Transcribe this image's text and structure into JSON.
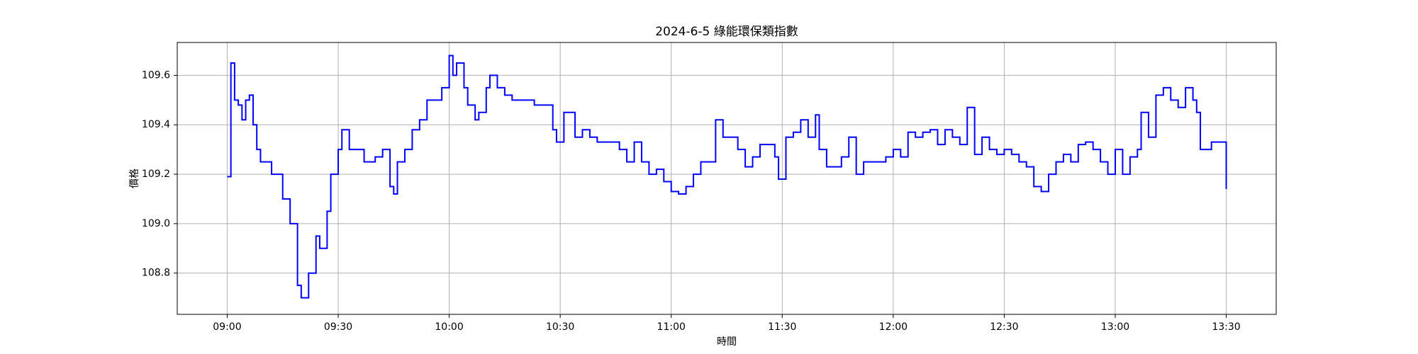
{
  "chart_data": {
    "type": "line",
    "title": "2024-6-5 綠能環保類指數",
    "x_label": "時間",
    "y_label": "價格",
    "x": [
      "09:00",
      "09:01",
      "09:02",
      "09:03",
      "09:04",
      "09:05",
      "09:06",
      "09:07",
      "09:08",
      "09:09",
      "09:10",
      "09:12",
      "09:14",
      "09:15",
      "09:17",
      "09:19",
      "09:20",
      "09:22",
      "09:24",
      "09:25",
      "09:27",
      "09:28",
      "09:30",
      "09:31",
      "09:33",
      "09:35",
      "09:37",
      "09:40",
      "09:42",
      "09:44",
      "09:45",
      "09:46",
      "09:48",
      "09:50",
      "09:52",
      "09:54",
      "09:56",
      "09:58",
      "10:00",
      "10:01",
      "10:02",
      "10:04",
      "10:05",
      "10:07",
      "10:08",
      "10:10",
      "10:11",
      "10:13",
      "10:15",
      "10:17",
      "10:20",
      "10:23",
      "10:26",
      "10:28",
      "10:29",
      "10:31",
      "10:33",
      "10:34",
      "10:36",
      "10:38",
      "10:40",
      "10:43",
      "10:46",
      "10:48",
      "10:50",
      "10:52",
      "10:54",
      "10:56",
      "10:58",
      "11:00",
      "11:02",
      "11:04",
      "11:06",
      "11:08",
      "11:10",
      "11:12",
      "11:14",
      "11:16",
      "11:18",
      "11:20",
      "11:22",
      "11:24",
      "11:26",
      "11:28",
      "11:29",
      "11:31",
      "11:33",
      "11:35",
      "11:37",
      "11:39",
      "11:40",
      "11:42",
      "11:44",
      "11:46",
      "11:48",
      "11:50",
      "11:52",
      "11:55",
      "11:58",
      "12:00",
      "12:02",
      "12:04",
      "12:06",
      "12:08",
      "12:10",
      "12:12",
      "12:14",
      "12:16",
      "12:18",
      "12:20",
      "12:22",
      "12:24",
      "12:26",
      "12:28",
      "12:30",
      "12:32",
      "12:34",
      "12:36",
      "12:38",
      "12:40",
      "12:42",
      "12:44",
      "12:46",
      "12:48",
      "12:50",
      "12:52",
      "12:54",
      "12:56",
      "12:58",
      "13:00",
      "13:02",
      "13:04",
      "13:06",
      "13:07",
      "13:09",
      "13:11",
      "13:13",
      "13:15",
      "13:17",
      "13:19",
      "13:21",
      "13:22",
      "13:23",
      "13:24",
      "13:26",
      "13:30"
    ],
    "series": [
      {
        "name": "價格",
        "color": "#0000ff",
        "values": [
          109.19,
          109.65,
          109.5,
          109.48,
          109.42,
          109.5,
          109.52,
          109.4,
          109.3,
          109.25,
          109.25,
          109.2,
          109.2,
          109.1,
          109.0,
          108.75,
          108.7,
          108.8,
          108.95,
          108.9,
          109.05,
          109.2,
          109.3,
          109.38,
          109.3,
          109.3,
          109.25,
          109.27,
          109.3,
          109.15,
          109.12,
          109.25,
          109.3,
          109.38,
          109.42,
          109.5,
          109.5,
          109.55,
          109.68,
          109.6,
          109.65,
          109.55,
          109.48,
          109.42,
          109.45,
          109.55,
          109.6,
          109.55,
          109.52,
          109.5,
          109.5,
          109.48,
          109.48,
          109.38,
          109.33,
          109.45,
          109.45,
          109.35,
          109.38,
          109.35,
          109.33,
          109.33,
          109.3,
          109.25,
          109.33,
          109.25,
          109.2,
          109.22,
          109.17,
          109.13,
          109.12,
          109.15,
          109.2,
          109.25,
          109.25,
          109.42,
          109.35,
          109.35,
          109.3,
          109.23,
          109.27,
          109.32,
          109.32,
          109.27,
          109.18,
          109.35,
          109.37,
          109.42,
          109.35,
          109.44,
          109.3,
          109.23,
          109.23,
          109.27,
          109.35,
          109.2,
          109.25,
          109.25,
          109.27,
          109.3,
          109.27,
          109.37,
          109.35,
          109.37,
          109.38,
          109.32,
          109.38,
          109.35,
          109.32,
          109.47,
          109.28,
          109.35,
          109.3,
          109.28,
          109.3,
          109.28,
          109.25,
          109.23,
          109.15,
          109.13,
          109.2,
          109.25,
          109.28,
          109.25,
          109.32,
          109.33,
          109.3,
          109.25,
          109.2,
          109.3,
          109.2,
          109.27,
          109.3,
          109.45,
          109.35,
          109.52,
          109.55,
          109.5,
          109.47,
          109.55,
          109.5,
          109.45,
          109.3,
          109.3,
          109.33,
          109.14
        ]
      }
    ],
    "xlim": [
      "08:46:30",
      "13:43:30"
    ],
    "xticks": [
      "09:00",
      "09:30",
      "10:00",
      "10:30",
      "11:00",
      "11:30",
      "12:00",
      "12:30",
      "13:00",
      "13:30"
    ],
    "ylim": [
      108.633,
      109.733
    ],
    "yticks": [
      108.8,
      {
        "value": 109,
        "label": "109.0"
      },
      109.2,
      109.4,
      109.6
    ],
    "grid": true,
    "step": true
  }
}
